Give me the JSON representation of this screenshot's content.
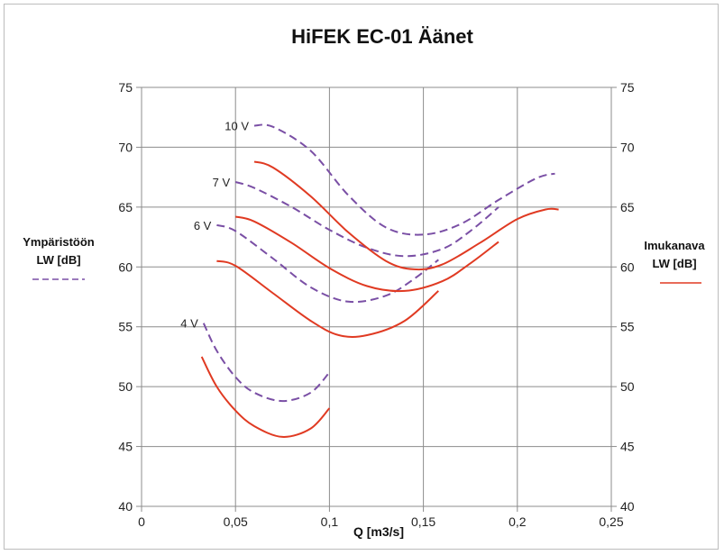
{
  "chart_data": {
    "type": "line",
    "title": "HiFEK EC-01 Äänet",
    "xlabel": "Q [m3/s]",
    "x_ticks": [
      "0",
      "0,05",
      "0,1",
      "0,15",
      "0,2",
      "0,25"
    ],
    "xlim": [
      0,
      0.25
    ],
    "y_ticks": [
      "40",
      "45",
      "50",
      "55",
      "60",
      "65",
      "70",
      "75"
    ],
    "ylim": [
      40,
      75
    ],
    "y2_ticks": [
      "40",
      "45",
      "50",
      "55",
      "60",
      "65",
      "70",
      "75"
    ],
    "grid": true,
    "legend": {
      "left": {
        "lines": [
          "Ympäristöön",
          "LW [dB]"
        ],
        "color": "#7a4fa5",
        "dash": true
      },
      "right": {
        "lines": [
          "Imukanava",
          "LW [dB]"
        ],
        "color": "#e03a22",
        "dash": false
      }
    },
    "series": [
      {
        "group": "Ympäristöön LW [dB]",
        "label": "4 V",
        "color": "#7a4fa5",
        "dash": true,
        "points": [
          [
            0.033,
            55.3
          ],
          [
            0.04,
            53.0
          ],
          [
            0.05,
            50.8
          ],
          [
            0.06,
            49.5
          ],
          [
            0.075,
            48.8
          ],
          [
            0.09,
            49.5
          ],
          [
            0.1,
            51.2
          ]
        ]
      },
      {
        "group": "Ympäristöön LW [dB]",
        "label": "6 V",
        "color": "#7a4fa5",
        "dash": true,
        "points": [
          [
            0.04,
            63.5
          ],
          [
            0.05,
            63.0
          ],
          [
            0.07,
            60.7
          ],
          [
            0.09,
            58.3
          ],
          [
            0.11,
            57.1
          ],
          [
            0.13,
            57.6
          ],
          [
            0.145,
            59.0
          ],
          [
            0.158,
            60.6
          ]
        ]
      },
      {
        "group": "Ympäristöön LW [dB]",
        "label": "7 V",
        "color": "#7a4fa5",
        "dash": true,
        "points": [
          [
            0.05,
            67.1
          ],
          [
            0.06,
            66.6
          ],
          [
            0.08,
            65.0
          ],
          [
            0.1,
            63.1
          ],
          [
            0.12,
            61.6
          ],
          [
            0.14,
            60.9
          ],
          [
            0.16,
            61.5
          ],
          [
            0.175,
            63.0
          ],
          [
            0.19,
            65.0
          ]
        ]
      },
      {
        "group": "Ympäristöön LW [dB]",
        "label": "10 V",
        "color": "#7a4fa5",
        "dash": true,
        "points": [
          [
            0.06,
            71.8
          ],
          [
            0.07,
            71.7
          ],
          [
            0.09,
            69.7
          ],
          [
            0.11,
            66.0
          ],
          [
            0.13,
            63.3
          ],
          [
            0.15,
            62.7
          ],
          [
            0.17,
            63.6
          ],
          [
            0.19,
            65.6
          ],
          [
            0.21,
            67.4
          ],
          [
            0.22,
            67.8
          ]
        ]
      },
      {
        "group": "Imukanava LW [dB]",
        "label": "4 V",
        "color": "#e03a22",
        "dash": false,
        "points": [
          [
            0.032,
            52.5
          ],
          [
            0.04,
            50.0
          ],
          [
            0.05,
            48.0
          ],
          [
            0.06,
            46.7
          ],
          [
            0.075,
            45.8
          ],
          [
            0.09,
            46.5
          ],
          [
            0.1,
            48.2
          ]
        ]
      },
      {
        "group": "Imukanava LW [dB]",
        "label": "6 V",
        "color": "#e03a22",
        "dash": false,
        "points": [
          [
            0.04,
            60.5
          ],
          [
            0.05,
            60.1
          ],
          [
            0.07,
            57.8
          ],
          [
            0.09,
            55.5
          ],
          [
            0.105,
            54.3
          ],
          [
            0.12,
            54.3
          ],
          [
            0.14,
            55.5
          ],
          [
            0.158,
            58.0
          ]
        ]
      },
      {
        "group": "Imukanava LW [dB]",
        "label": "7 V",
        "color": "#e03a22",
        "dash": false,
        "points": [
          [
            0.05,
            64.2
          ],
          [
            0.06,
            63.8
          ],
          [
            0.08,
            62.0
          ],
          [
            0.1,
            59.9
          ],
          [
            0.12,
            58.4
          ],
          [
            0.14,
            58.0
          ],
          [
            0.16,
            58.8
          ],
          [
            0.175,
            60.3
          ],
          [
            0.19,
            62.1
          ]
        ]
      },
      {
        "group": "Imukanava LW [dB]",
        "label": "10 V",
        "color": "#e03a22",
        "dash": false,
        "points": [
          [
            0.06,
            68.8
          ],
          [
            0.07,
            68.3
          ],
          [
            0.09,
            65.9
          ],
          [
            0.11,
            62.9
          ],
          [
            0.13,
            60.5
          ],
          [
            0.145,
            59.8
          ],
          [
            0.16,
            60.2
          ],
          [
            0.18,
            62.0
          ],
          [
            0.2,
            64.0
          ],
          [
            0.215,
            64.8
          ],
          [
            0.222,
            64.8
          ]
        ]
      }
    ]
  }
}
